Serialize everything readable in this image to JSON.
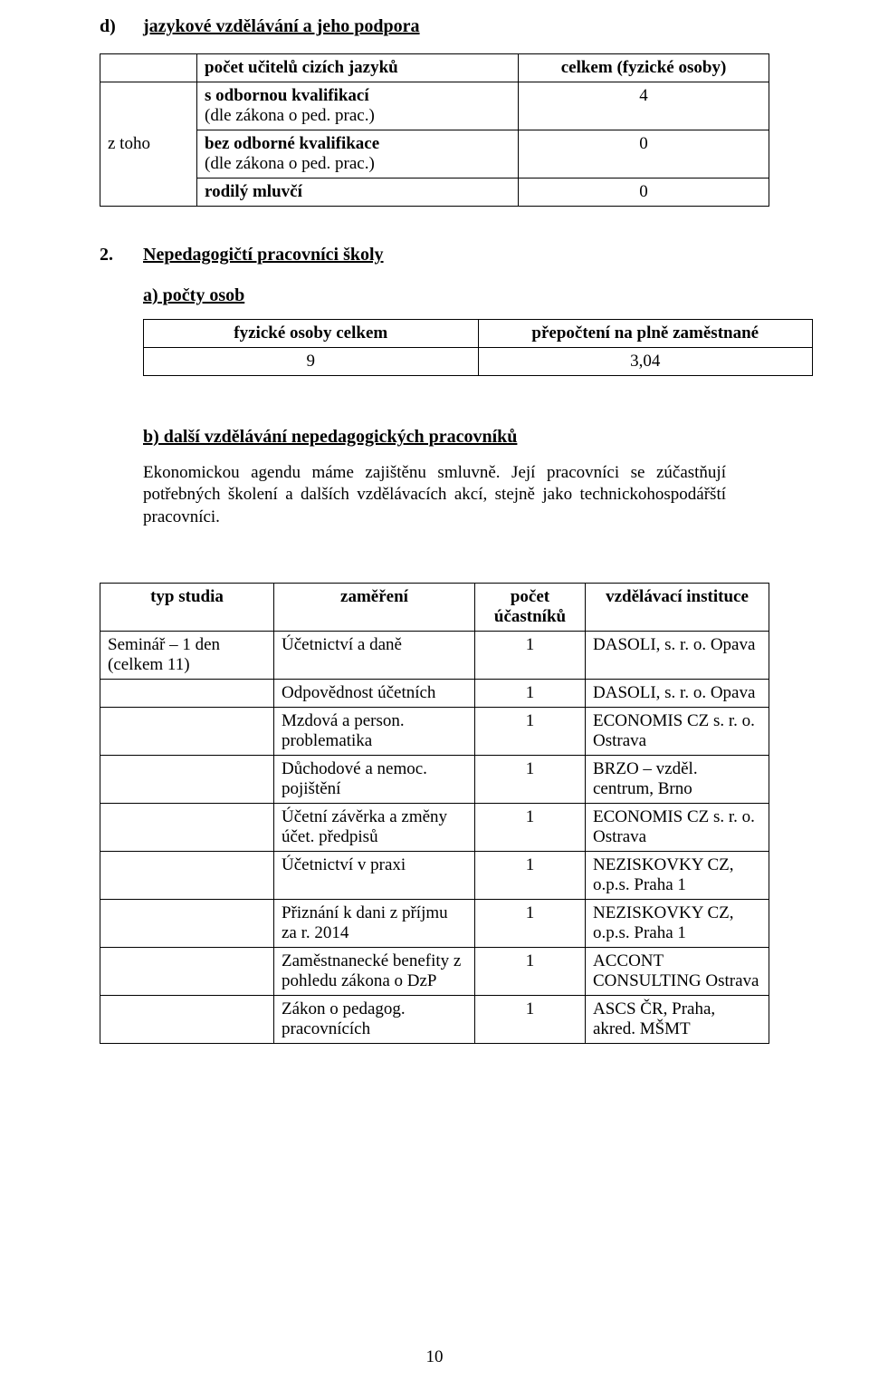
{
  "heading_d": {
    "letter": "d)",
    "text": "jazykové vzdělávání a jeho podpora"
  },
  "table1": {
    "r0c1": "počet učitelů cizích jazyků",
    "r0c2": "celkem (fyzické osoby)",
    "r1c0": "z toho",
    "r1c1a": "s odbornou kvalifikací",
    "r1c1b": "(dle zákona o ped. prac.)",
    "r1c2": "4",
    "r2c1a": "bez odborné kvalifikace",
    "r2c1b": "(dle zákona o ped. prac.)",
    "r2c2": "0",
    "r3c1": "rodilý mluvčí",
    "r3c2": "0"
  },
  "section2": {
    "num": "2.",
    "text": "Nepedagogičtí pracovníci školy"
  },
  "sub_a": "a)  počty osob",
  "table2": {
    "h0": "fyzické osoby celkem",
    "h1": "přepočtení na plně zaměstnané",
    "v0": "9",
    "v1": "3,04"
  },
  "sub_b": "b)  další vzdělávání nepedagogických pracovníků",
  "para1": "Ekonomickou agendu máme zajištěnu smluvně. Její pracovníci se zúčastňují potřebných školení a dalších vzdělávacích akcí, stejně jako technickohospodářští pracovníci.",
  "table3": {
    "h0": "typ studia",
    "h1": "zaměření",
    "h2": "počet účastníků",
    "h3": "vzdělávací instituce",
    "rows": [
      {
        "c0": "Seminář – 1 den (celkem 11)",
        "c1": "Účetnictví a daně",
        "c2": "1",
        "c3": "DASOLI, s. r. o. Opava"
      },
      {
        "c0": "",
        "c1": "Odpovědnost účetních",
        "c2": "1",
        "c3": "DASOLI, s. r. o. Opava"
      },
      {
        "c0": "",
        "c1": "Mzdová a person. problematika",
        "c2": "1",
        "c3": "ECONOMIS CZ s. r. o. Ostrava"
      },
      {
        "c0": "",
        "c1": "Důchodové a nemoc. pojištění",
        "c2": "1",
        "c3": "BRZO – vzděl. centrum, Brno"
      },
      {
        "c0": "",
        "c1": "Účetní závěrka a změny účet. předpisů",
        "c2": "1",
        "c3": "ECONOMIS CZ s. r. o. Ostrava"
      },
      {
        "c0": "",
        "c1": "Účetnictví v praxi",
        "c2": "1",
        "c3": "NEZISKOVKY CZ, o.p.s. Praha 1"
      },
      {
        "c0": "",
        "c1": "Přiznání k dani z příjmu za r. 2014",
        "c2": "1",
        "c3": "NEZISKOVKY CZ, o.p.s. Praha 1"
      },
      {
        "c0": "",
        "c1": "Zaměstnanecké benefity z pohledu zákona o DzP",
        "c2": "1",
        "c3": "ACCONT CONSULTING Ostrava"
      },
      {
        "c0": "",
        "c1": "Zákon o pedagog. pracovnících",
        "c2": "1",
        "c3": "ASCS ČR, Praha, akred. MŠMT"
      }
    ]
  },
  "page_number": "10"
}
